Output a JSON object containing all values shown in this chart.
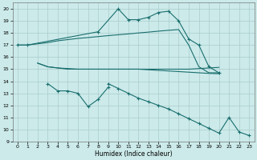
{
  "bg_color": "#cceaea",
  "grid_color": "#aacccc",
  "line_color": "#1a6e6e",
  "marker_color": "#1a6e6e",
  "xlim": [
    -0.5,
    23.5
  ],
  "ylim": [
    9,
    20.5
  ],
  "yticks": [
    9,
    10,
    11,
    12,
    13,
    14,
    15,
    16,
    17,
    18,
    19,
    20
  ],
  "xticks": [
    0,
    1,
    2,
    3,
    4,
    5,
    6,
    7,
    8,
    9,
    10,
    11,
    12,
    13,
    14,
    15,
    16,
    17,
    18,
    19,
    20,
    21,
    22,
    23
  ],
  "xlabel": "Humidex (Indice chaleur)",
  "curve_top_x": [
    0,
    1,
    8,
    10,
    11,
    12,
    13,
    14,
    15,
    16,
    17,
    18,
    19,
    20
  ],
  "curve_top_y": [
    17.0,
    17.0,
    18.1,
    20.0,
    19.1,
    19.1,
    19.3,
    19.7,
    19.8,
    19.0,
    17.5,
    17.0,
    15.2,
    14.7
  ],
  "curve_upper_x": [
    0,
    1,
    2,
    3,
    4,
    5,
    6,
    7,
    8,
    9,
    10,
    11,
    12,
    13,
    14,
    15,
    16,
    17,
    18,
    19,
    20
  ],
  "curve_upper_y": [
    17.0,
    17.0,
    17.1,
    17.2,
    17.35,
    17.45,
    17.55,
    17.62,
    17.7,
    17.78,
    17.85,
    17.92,
    18.0,
    18.07,
    18.15,
    18.22,
    18.28,
    17.0,
    15.2,
    14.7,
    14.7
  ],
  "curve_mid_x": [
    2,
    3,
    4,
    5,
    6,
    7,
    8,
    9,
    10,
    11,
    12,
    13,
    14,
    15,
    16,
    17,
    18,
    19,
    20
  ],
  "curve_mid_y": [
    15.5,
    15.2,
    15.1,
    15.05,
    15.0,
    15.0,
    15.0,
    15.0,
    15.0,
    15.0,
    15.0,
    15.0,
    15.0,
    15.0,
    15.0,
    15.0,
    15.05,
    15.1,
    15.15
  ],
  "curve_low_x": [
    2,
    3,
    4,
    5,
    6,
    7,
    8,
    9,
    10,
    11,
    12,
    13,
    14,
    15,
    16,
    17,
    18,
    19,
    20
  ],
  "curve_low_y": [
    15.5,
    15.2,
    15.1,
    15.0,
    15.0,
    15.0,
    15.0,
    15.0,
    15.0,
    15.0,
    15.0,
    14.95,
    14.9,
    14.85,
    14.8,
    14.75,
    14.7,
    14.65,
    14.62
  ],
  "curve_small_x": [
    3,
    4,
    5,
    6,
    7,
    8,
    9
  ],
  "curve_small_y": [
    13.8,
    13.2,
    13.2,
    13.0,
    11.9,
    12.5,
    13.5
  ],
  "curve_long_x": [
    9,
    10,
    11,
    12,
    13,
    14,
    15,
    16,
    17,
    18,
    19,
    20,
    21,
    22,
    23
  ],
  "curve_long_y": [
    13.8,
    13.4,
    13.0,
    12.6,
    12.3,
    12.0,
    11.7,
    11.3,
    10.9,
    10.5,
    10.1,
    9.7,
    11.0,
    9.8,
    9.5
  ]
}
